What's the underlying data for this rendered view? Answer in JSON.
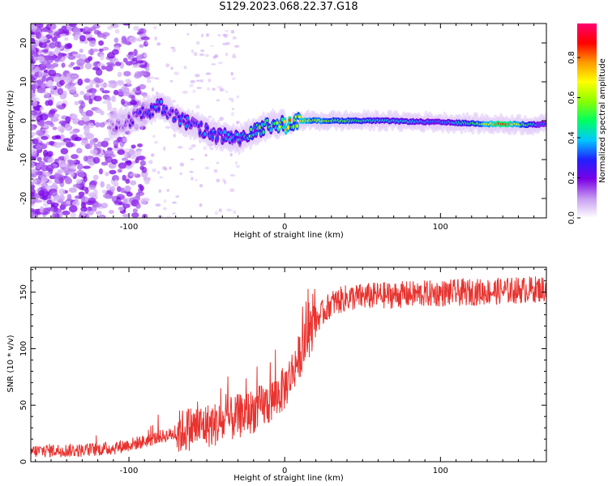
{
  "title": "S129.2023.068.22.37.G18",
  "colors": {
    "snr_line": "#e8332f",
    "colorbar_stops": [
      "#ffffff",
      "#c79bf2",
      "#7a00e6",
      "#2020ff",
      "#00c8ff",
      "#00ff60",
      "#8cff00",
      "#ffff00",
      "#ff9900",
      "#ff0000",
      "#ff0070"
    ]
  },
  "chart_data": [
    {
      "type": "heatmap",
      "xlabel": "Height of straight line (km)",
      "ylabel": "Frequency (Hz)",
      "xlim": [
        -163,
        168
      ],
      "ylim": [
        -25,
        25
      ],
      "xticks": [
        -100,
        0,
        100
      ],
      "yticks": [
        -20,
        -10,
        0,
        10,
        20
      ],
      "colorbar": {
        "label": "Normalized spectral amplitude",
        "range": [
          0,
          0.97
        ],
        "ticks": [
          "0.0",
          "0.2",
          "0.4",
          "0.6",
          "0.8"
        ]
      },
      "ridge": {
        "x": [
          -110,
          -100,
          -90,
          -80,
          -70,
          -60,
          -50,
          -40,
          -30,
          -20,
          -10,
          0,
          10,
          20,
          40,
          60,
          80,
          100,
          120,
          140,
          160,
          168
        ],
        "freq": [
          -1,
          0,
          2,
          4,
          1,
          -1,
          -3,
          -4,
          -5,
          -3,
          -1,
          -1,
          0,
          0,
          0,
          0,
          -0.2,
          -0.4,
          -0.7,
          -0.9,
          -1.0,
          -1.0
        ],
        "amplitude": [
          0.15,
          0.2,
          0.25,
          0.3,
          0.3,
          0.3,
          0.3,
          0.35,
          0.35,
          0.45,
          0.55,
          0.6,
          0.8,
          0.6,
          0.55,
          0.45,
          0.4,
          0.35,
          0.5,
          0.9,
          0.4,
          0.3
        ]
      }
    },
    {
      "type": "line",
      "xlabel": "Height of straight line (km)",
      "ylabel": "SNR (10 * v/v)",
      "xlim": [
        -163,
        168
      ],
      "ylim": [
        0,
        172
      ],
      "xticks": [
        -100,
        0,
        100
      ],
      "yticks": [
        0,
        50,
        100,
        150
      ],
      "series": [
        {
          "x": [
            -163,
            -150,
            -140,
            -130,
            -120,
            -110,
            -100,
            -90,
            -80,
            -70,
            -60,
            -50,
            -40,
            -30,
            -20,
            -10,
            0,
            10,
            20,
            30,
            40,
            60,
            80,
            100,
            120,
            140,
            168
          ],
          "values": [
            9,
            10,
            10,
            10,
            11,
            12,
            15,
            18,
            22,
            25,
            30,
            32,
            34,
            40,
            45,
            52,
            65,
            95,
            125,
            140,
            145,
            147,
            148,
            149,
            150,
            151,
            153
          ]
        }
      ]
    }
  ]
}
